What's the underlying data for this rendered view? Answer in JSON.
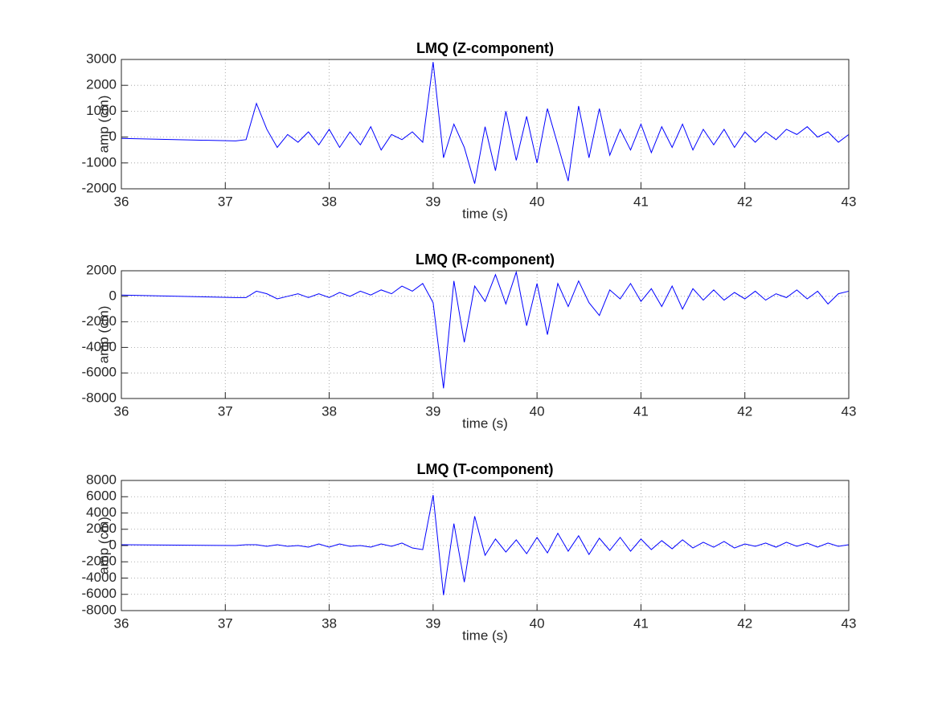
{
  "chart_data": [
    {
      "type": "line",
      "title": "LMQ (Z-component)",
      "x_label": "time (s)",
      "y_label": "amp (cm)",
      "color": "#0000ff",
      "grid": true,
      "xlim": [
        36,
        43
      ],
      "xticks": [
        36,
        37,
        38,
        39,
        40,
        41,
        42,
        43
      ],
      "ylim": [
        -2000,
        3000
      ],
      "yticks": [
        -2000,
        -1000,
        0,
        1000,
        2000,
        3000
      ],
      "x": [
        36,
        37.1,
        37.2,
        37.3,
        37.4,
        37.5,
        37.6,
        37.7,
        37.8,
        37.9,
        38.0,
        38.1,
        38.2,
        38.3,
        38.4,
        38.5,
        38.6,
        38.7,
        38.8,
        38.9,
        39.0,
        39.1,
        39.2,
        39.3,
        39.4,
        39.5,
        39.6,
        39.7,
        39.8,
        39.9,
        40.0,
        40.1,
        40.2,
        40.3,
        40.4,
        40.5,
        40.6,
        40.7,
        40.8,
        40.9,
        41.0,
        41.1,
        41.2,
        41.3,
        41.4,
        41.5,
        41.6,
        41.7,
        41.8,
        41.9,
        42.0,
        42.1,
        42.2,
        42.3,
        42.4,
        42.5,
        42.6,
        42.7,
        42.8,
        42.9,
        43.0
      ],
      "values": [
        -50,
        -150,
        -100,
        1300,
        300,
        -400,
        100,
        -200,
        200,
        -300,
        300,
        -400,
        200,
        -300,
        400,
        -500,
        100,
        -100,
        200,
        -200,
        2900,
        -800,
        500,
        -400,
        -1800,
        400,
        -1300,
        1000,
        -900,
        800,
        -1000,
        1100,
        -300,
        -1700,
        1200,
        -800,
        1100,
        -700,
        300,
        -500,
        500,
        -600,
        400,
        -400,
        500,
        -500,
        300,
        -300,
        300,
        -400,
        200,
        -200,
        200,
        -100,
        300,
        100,
        400,
        0,
        200,
        -200,
        100
      ]
    },
    {
      "type": "line",
      "title": "LMQ (R-component)",
      "x_label": "time (s)",
      "y_label": "amp (cm)",
      "color": "#0000ff",
      "grid": true,
      "xlim": [
        36,
        43
      ],
      "xticks": [
        36,
        37,
        38,
        39,
        40,
        41,
        42,
        43
      ],
      "ylim": [
        -8000,
        2000
      ],
      "yticks": [
        -8000,
        -6000,
        -4000,
        -2000,
        0,
        2000
      ],
      "x": [
        36,
        37.1,
        37.2,
        37.3,
        37.4,
        37.5,
        37.6,
        37.7,
        37.8,
        37.9,
        38.0,
        38.1,
        38.2,
        38.3,
        38.4,
        38.5,
        38.6,
        38.7,
        38.8,
        38.9,
        39.0,
        39.1,
        39.2,
        39.3,
        39.4,
        39.5,
        39.6,
        39.7,
        39.8,
        39.9,
        40.0,
        40.1,
        40.2,
        40.3,
        40.4,
        40.5,
        40.6,
        40.7,
        40.8,
        40.9,
        41.0,
        41.1,
        41.2,
        41.3,
        41.4,
        41.5,
        41.6,
        41.7,
        41.8,
        41.9,
        42.0,
        42.1,
        42.2,
        42.3,
        42.4,
        42.5,
        42.6,
        42.7,
        42.8,
        42.9,
        43.0
      ],
      "values": [
        100,
        -100,
        -100,
        400,
        200,
        -200,
        0,
        200,
        -100,
        200,
        -100,
        300,
        0,
        400,
        100,
        500,
        200,
        800,
        400,
        1000,
        -500,
        -7200,
        1200,
        -3600,
        800,
        -400,
        1700,
        -600,
        1900,
        -2300,
        1000,
        -3000,
        1000,
        -800,
        1200,
        -500,
        -1500,
        500,
        -200,
        1000,
        -400,
        600,
        -800,
        800,
        -1000,
        600,
        -300,
        500,
        -300,
        300,
        -200,
        400,
        -300,
        200,
        -100,
        500,
        -200,
        400,
        -600,
        200,
        400
      ]
    },
    {
      "type": "line",
      "title": "LMQ (T-component)",
      "x_label": "time (s)",
      "y_label": "amp (cm)",
      "color": "#0000ff",
      "grid": true,
      "xlim": [
        36,
        43
      ],
      "xticks": [
        36,
        37,
        38,
        39,
        40,
        41,
        42,
        43
      ],
      "ylim": [
        -8000,
        8000
      ],
      "yticks": [
        -8000,
        -6000,
        -4000,
        -2000,
        0,
        2000,
        4000,
        6000,
        8000
      ],
      "x": [
        36,
        37.1,
        37.2,
        37.3,
        37.4,
        37.5,
        37.6,
        37.7,
        37.8,
        37.9,
        38.0,
        38.1,
        38.2,
        38.3,
        38.4,
        38.5,
        38.6,
        38.7,
        38.8,
        38.9,
        39.0,
        39.1,
        39.2,
        39.3,
        39.4,
        39.5,
        39.6,
        39.7,
        39.8,
        39.9,
        40.0,
        40.1,
        40.2,
        40.3,
        40.4,
        40.5,
        40.6,
        40.7,
        40.8,
        40.9,
        41.0,
        41.1,
        41.2,
        41.3,
        41.4,
        41.5,
        41.6,
        41.7,
        41.8,
        41.9,
        42.0,
        42.1,
        42.2,
        42.3,
        42.4,
        42.5,
        42.6,
        42.7,
        42.8,
        42.9,
        43.0
      ],
      "values": [
        100,
        0,
        100,
        100,
        -100,
        100,
        -100,
        0,
        -200,
        200,
        -200,
        200,
        -100,
        0,
        -200,
        200,
        -100,
        300,
        -300,
        -500,
        6200,
        -6100,
        2700,
        -4500,
        3600,
        -1200,
        800,
        -800,
        700,
        -1000,
        1000,
        -900,
        1500,
        -700,
        1200,
        -1100,
        900,
        -600,
        1000,
        -700,
        800,
        -500,
        600,
        -400,
        700,
        -300,
        400,
        -200,
        500,
        -300,
        200,
        -100,
        300,
        -200,
        400,
        -100,
        300,
        -200,
        300,
        -100,
        100
      ]
    }
  ]
}
